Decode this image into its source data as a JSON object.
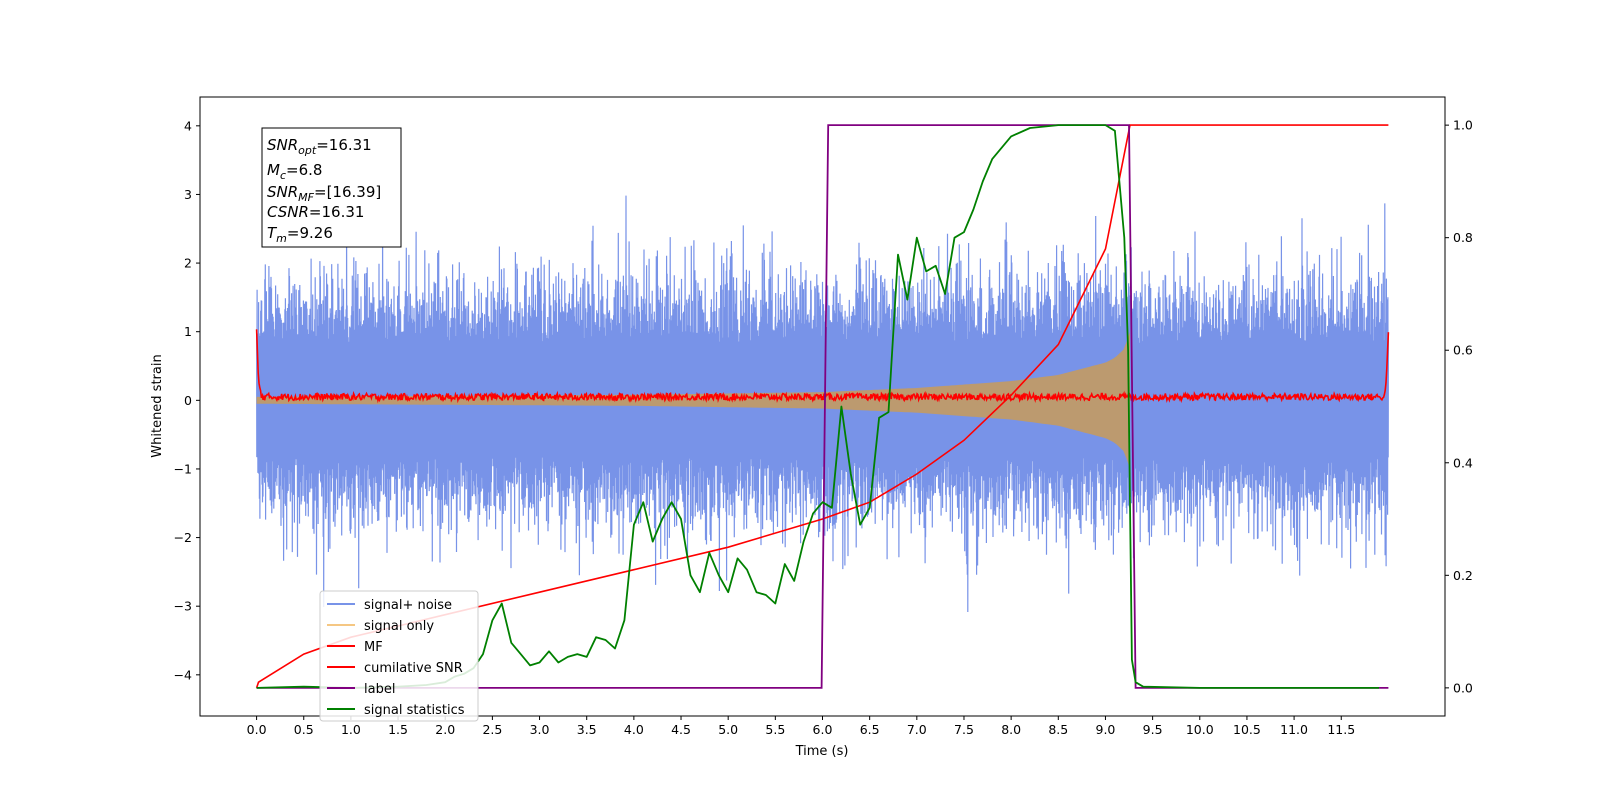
{
  "chart_data": {
    "type": "line",
    "xlabel": "Time (s)",
    "ylabel": "Whitened strain",
    "xlim": [
      -0.6,
      12.6
    ],
    "ylim": [
      -4.6,
      4.42
    ],
    "y2lim": [
      -0.05,
      1.05
    ],
    "x_ticks": [
      "0.0",
      "0.5",
      "1.0",
      "1.5",
      "2.0",
      "2.5",
      "3.0",
      "3.5",
      "4.0",
      "4.5",
      "5.0",
      "5.5",
      "6.0",
      "6.5",
      "7.0",
      "7.5",
      "8.0",
      "8.5",
      "9.0",
      "9.5",
      "10.0",
      "10.5",
      "11.0",
      "11.5"
    ],
    "y_ticks": [
      "4",
      "3",
      "2",
      "1",
      "0",
      "−1",
      "−2",
      "−3",
      "−4"
    ],
    "y2_ticks": [
      "1.0",
      "0.8",
      "0.6",
      "0.4",
      "0.2",
      "0.0"
    ],
    "colors": {
      "signal_noise": "#7893e8",
      "signal_only": "#f5c783",
      "mf": "#ff0000",
      "cumulative_snr": "#ff0000",
      "label": "#800080",
      "signal_statistics": "#008000",
      "overlap_fill": "#bc9a6f"
    },
    "info_box": {
      "snr_opt": {
        "main": "SNR",
        "sub": "opt",
        "value": "=16.31"
      },
      "mc": {
        "main": "M",
        "sub": "c",
        "value": "=6.8"
      },
      "snr_mf": {
        "main": "SNR",
        "sub": "MF",
        "value": "=[16.39]"
      },
      "csnr": {
        "main": "CSNR",
        "sub": "",
        "value": "=16.31"
      },
      "tm": {
        "main": "T",
        "sub": "m",
        "value": "=9.26"
      }
    },
    "legend": {
      "placement": "lower-left",
      "entries": [
        "signal+ noise",
        "signal only",
        "MF",
        "cumilative SNR",
        "label",
        "signal statistics"
      ]
    },
    "signal_noise_envelope": {
      "x": [
        0.0,
        6.0,
        9.24,
        9.28,
        12.0
      ],
      "upper": [
        2.3,
        2.3,
        2.4,
        2.3,
        2.3
      ],
      "lower": [
        -2.3,
        -2.3,
        -2.4,
        -2.3,
        -2.3
      ]
    },
    "signal_only_envelope": {
      "x": [
        0.0,
        4.0,
        6.0,
        7.0,
        8.0,
        8.5,
        9.0,
        9.1,
        9.2,
        9.26
      ],
      "amplitude": [
        0.05,
        0.08,
        0.12,
        0.18,
        0.28,
        0.37,
        0.55,
        0.62,
        0.75,
        1.0
      ]
    },
    "mf": {
      "x": [
        0.0,
        0.02,
        0.05,
        11.96,
        11.98,
        12.0
      ],
      "values": [
        1.0,
        0.3,
        0.05,
        0.05,
        0.4,
        0.95
      ],
      "noise_amplitude": 0.05
    },
    "cumulative_snr": {
      "x": [
        0.0,
        0.02,
        0.5,
        1.0,
        1.5,
        2.0,
        3.0,
        4.0,
        5.0,
        6.0,
        6.5,
        7.0,
        7.5,
        8.0,
        8.5,
        9.0,
        9.26,
        9.28,
        12.0
      ],
      "values": [
        0.0,
        0.01,
        0.06,
        0.09,
        0.11,
        0.13,
        0.17,
        0.21,
        0.25,
        0.3,
        0.33,
        0.38,
        0.44,
        0.52,
        0.61,
        0.78,
        1.0,
        1.0,
        1.0
      ]
    },
    "label": {
      "x": [
        0.0,
        5.99,
        6.06,
        9.25,
        9.32,
        12.0
      ],
      "values": [
        0.0,
        0.0,
        1.0,
        1.0,
        0.0,
        0.0
      ]
    },
    "signal_statistics": {
      "x": [
        0.0,
        0.5,
        1.0,
        1.5,
        1.8,
        2.0,
        2.1,
        2.2,
        2.3,
        2.4,
        2.5,
        2.6,
        2.7,
        2.8,
        2.9,
        3.0,
        3.1,
        3.2,
        3.3,
        3.4,
        3.5,
        3.6,
        3.7,
        3.8,
        3.9,
        4.0,
        4.05,
        4.1,
        4.2,
        4.3,
        4.4,
        4.5,
        4.6,
        4.7,
        4.8,
        4.9,
        5.0,
        5.1,
        5.2,
        5.3,
        5.4,
        5.5,
        5.6,
        5.7,
        5.8,
        5.9,
        6.0,
        6.1,
        6.2,
        6.3,
        6.4,
        6.5,
        6.6,
        6.7,
        6.8,
        6.9,
        7.0,
        7.1,
        7.2,
        7.3,
        7.4,
        7.5,
        7.6,
        7.7,
        7.8,
        8.0,
        8.2,
        8.5,
        9.0,
        9.1,
        9.2,
        9.24,
        9.28,
        9.32,
        9.4,
        10.0,
        11.0,
        11.9
      ],
      "values": [
        0.0,
        0.002,
        0.0,
        0.002,
        0.005,
        0.01,
        0.02,
        0.025,
        0.035,
        0.06,
        0.12,
        0.15,
        0.08,
        0.06,
        0.04,
        0.045,
        0.065,
        0.045,
        0.055,
        0.06,
        0.055,
        0.09,
        0.085,
        0.07,
        0.12,
        0.29,
        0.31,
        0.33,
        0.26,
        0.3,
        0.33,
        0.3,
        0.2,
        0.17,
        0.24,
        0.2,
        0.17,
        0.23,
        0.21,
        0.17,
        0.165,
        0.15,
        0.22,
        0.19,
        0.26,
        0.31,
        0.33,
        0.32,
        0.5,
        0.38,
        0.29,
        0.32,
        0.48,
        0.49,
        0.77,
        0.69,
        0.8,
        0.74,
        0.75,
        0.7,
        0.8,
        0.81,
        0.85,
        0.9,
        0.94,
        0.98,
        0.995,
        1.0,
        1.0,
        0.99,
        0.8,
        0.6,
        0.05,
        0.01,
        0.002,
        0.0,
        0.0,
        0.0
      ]
    }
  }
}
